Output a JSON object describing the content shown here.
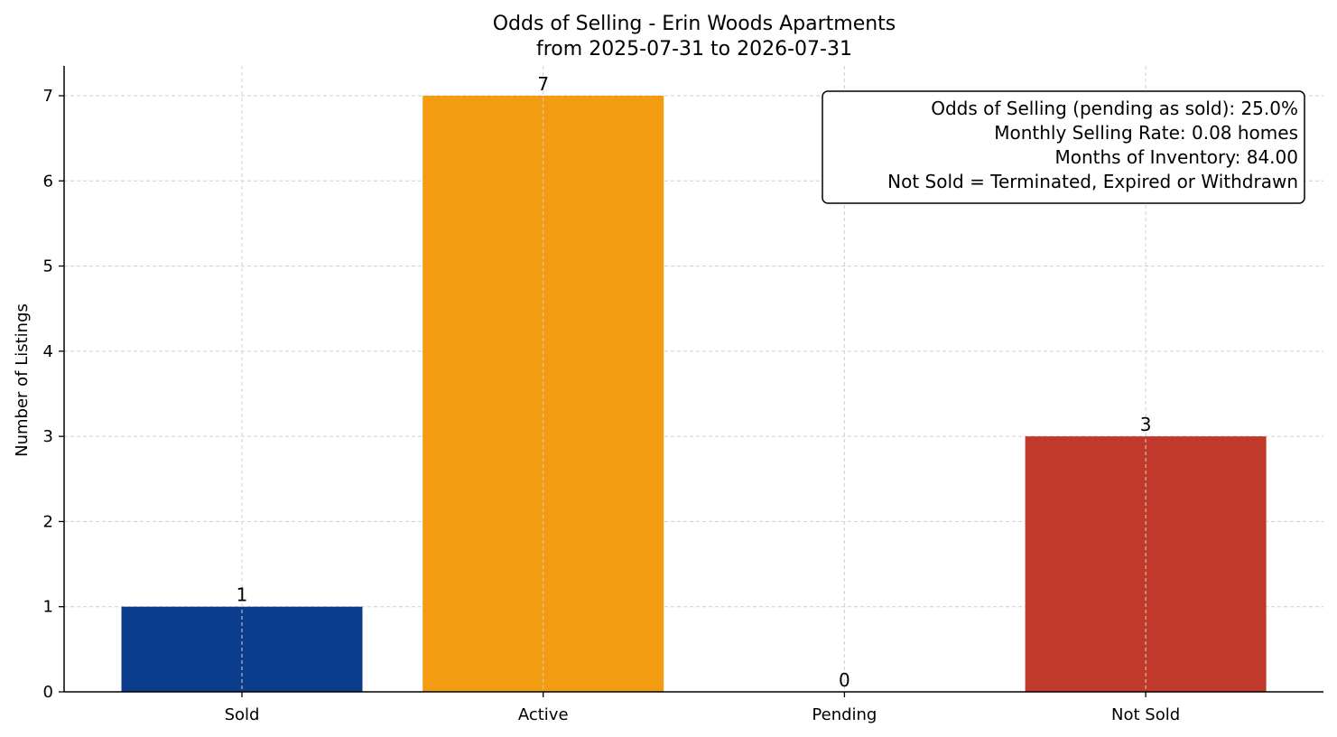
{
  "chart_data": {
    "type": "bar",
    "title": "Odds of Selling - Erin Woods Apartments",
    "subtitle": "from 2025-07-31 to 2026-07-31",
    "xlabel": "",
    "ylabel": "Number of Listings",
    "categories": [
      "Sold",
      "Active",
      "Pending",
      "Not Sold"
    ],
    "values": [
      1,
      7,
      0,
      3
    ],
    "data_labels": [
      "1",
      "7",
      "0",
      "3"
    ],
    "colors": [
      "#0b3d8c",
      "#f39c12",
      "#7f8c8d",
      "#c0392b"
    ],
    "ylim": [
      0,
      7.35
    ],
    "yticks": [
      "0",
      "1",
      "2",
      "3",
      "4",
      "5",
      "6",
      "7"
    ],
    "grid": true,
    "annotation": {
      "placement": "top-right",
      "lines": [
        "Odds of Selling (pending as sold): 25.0%",
        "Monthly Selling Rate: 0.08 homes",
        "Months of Inventory: 84.00",
        "Not Sold = Terminated, Expired or Withdrawn"
      ]
    }
  }
}
